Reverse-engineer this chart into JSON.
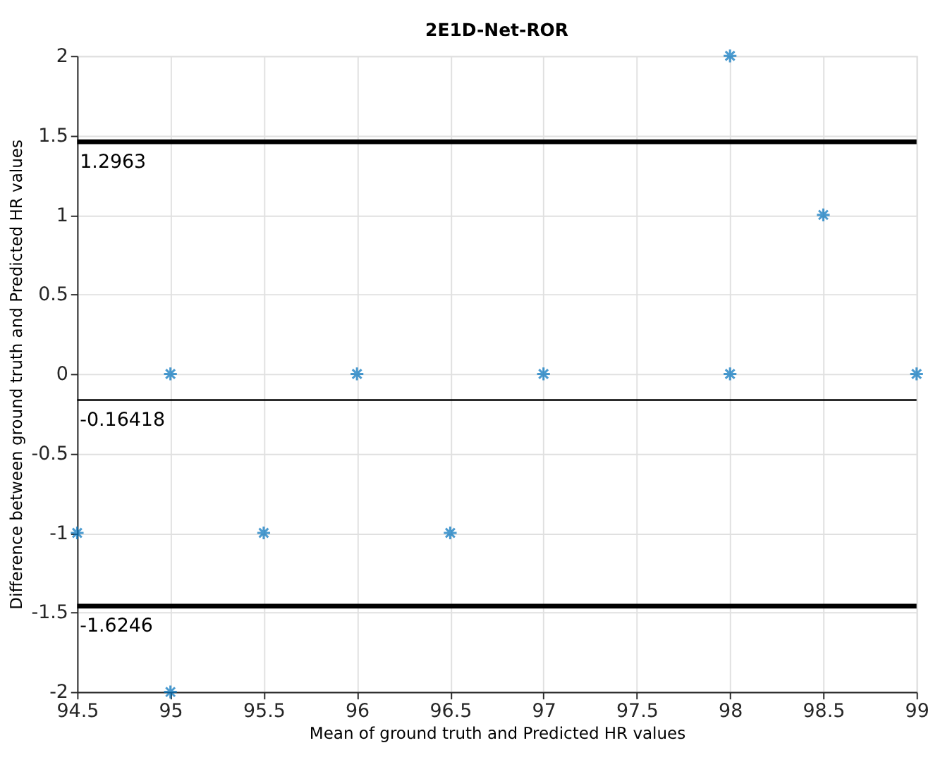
{
  "chart_data": {
    "type": "scatter",
    "title": "2E1D-Net-ROR",
    "xlabel": "Mean of ground truth and Predicted HR values",
    "ylabel": "Difference between ground truth and Predicted HR values",
    "x": [
      94.5,
      95,
      95,
      95.5,
      96,
      96.5,
      97,
      98,
      98,
      98.5,
      99
    ],
    "series": [
      {
        "color": "#0072bd",
        "values": [
          -1,
          0,
          -2,
          -1,
          0,
          -1,
          0,
          2,
          0,
          1,
          0
        ]
      }
    ],
    "xlim": [
      94.5,
      99
    ],
    "xticks": [
      94.5,
      95,
      95.5,
      96,
      96.5,
      97,
      97.5,
      98,
      98.5,
      99
    ],
    "ylim": [
      -2,
      2
    ],
    "yticks": [
      -2,
      -1.5,
      -1,
      -0.5,
      0,
      0.5,
      1,
      1.5,
      2
    ],
    "ref_lines": [
      {
        "axis": "y",
        "value": 1.46,
        "color": "#000000"
      },
      {
        "axis": "y",
        "value": -0.16418,
        "label": "-0.16418",
        "color": "#000000"
      },
      {
        "axis": "y",
        "value": -1.46,
        "color": "#000000"
      }
    ],
    "annotations": [
      {
        "text": "1.2963",
        "x": 94.5,
        "y": 1.46
      },
      {
        "text": "-1.6246",
        "x": 94.5,
        "y": -1.46
      }
    ],
    "grid": true,
    "marker": "cross"
  }
}
